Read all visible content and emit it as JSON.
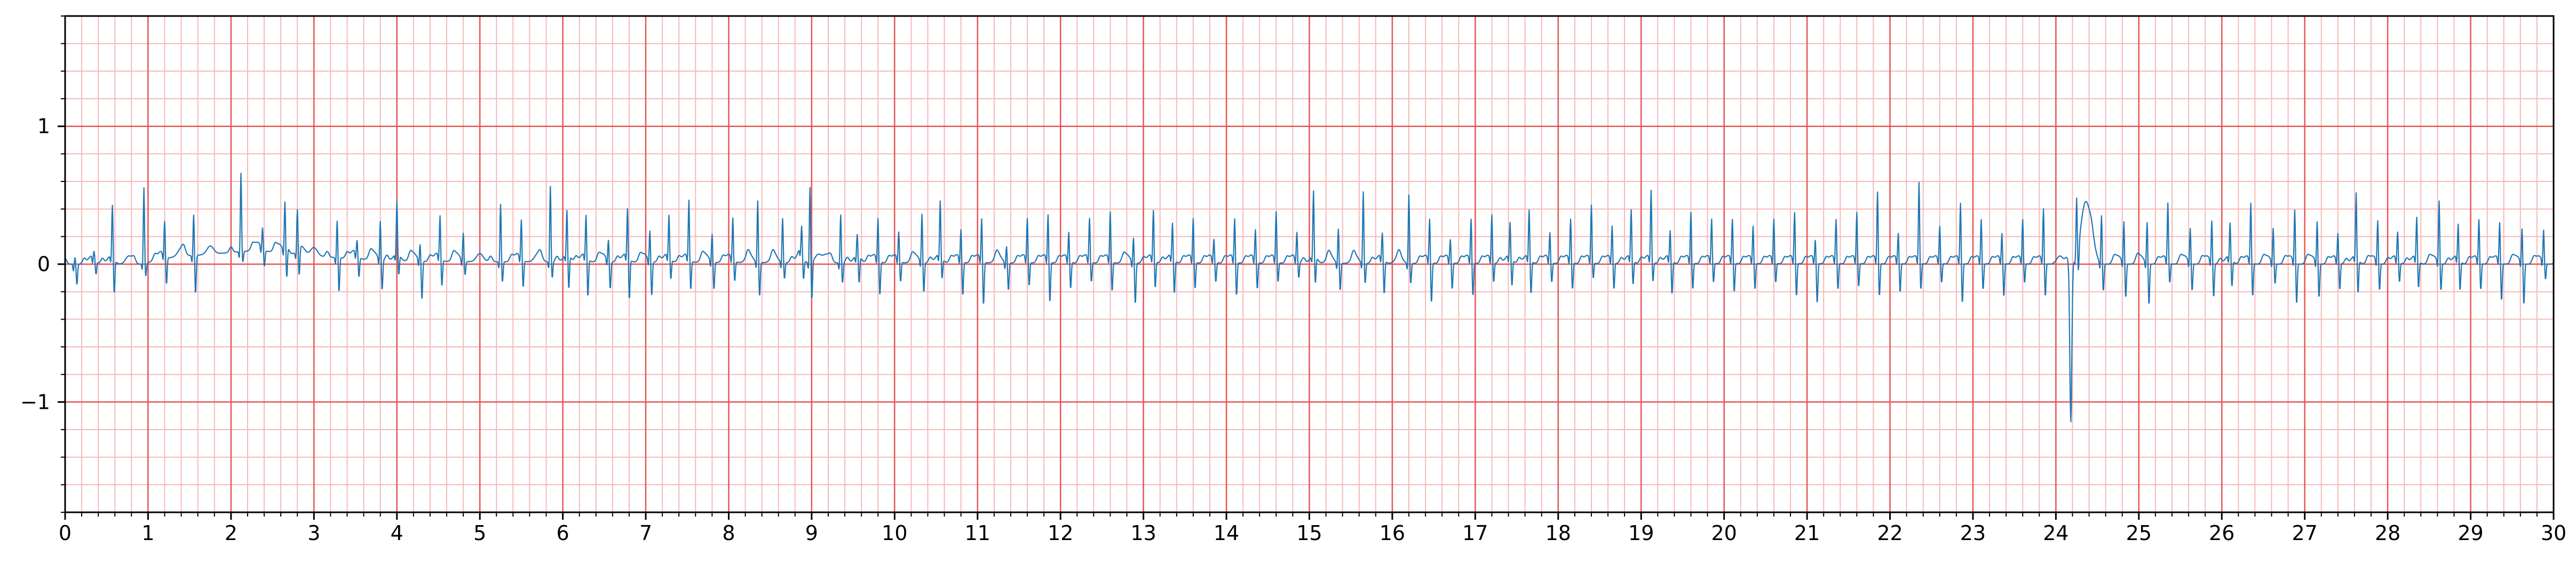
{
  "chart_data": {
    "type": "line",
    "title": "",
    "xlabel": "",
    "ylabel": "",
    "xlim": [
      0,
      30
    ],
    "ylim": [
      -1.8,
      1.8
    ],
    "x_ticks": [
      0,
      1,
      2,
      3,
      4,
      5,
      6,
      7,
      8,
      9,
      10,
      11,
      12,
      13,
      14,
      15,
      16,
      17,
      18,
      19,
      20,
      21,
      22,
      23,
      24,
      25,
      26,
      27,
      28,
      29,
      30
    ],
    "x_tick_labels": [
      "0",
      "1",
      "2",
      "3",
      "4",
      "5",
      "6",
      "7",
      "8",
      "9",
      "10",
      "11",
      "12",
      "13",
      "14",
      "15",
      "16",
      "17",
      "18",
      "19",
      "20",
      "21",
      "22",
      "23",
      "24",
      "25",
      "26",
      "27",
      "28",
      "29",
      "30"
    ],
    "y_ticks": [
      -1,
      0,
      1
    ],
    "y_tick_labels": [
      "−1",
      "0",
      "1"
    ],
    "grid": {
      "major_x_step": 1,
      "minor_x_step": 0.2,
      "major_y_step": 1,
      "minor_y_step": 0.2,
      "major_color": "#e85454",
      "minor_color": "#f7b8b8"
    },
    "line_color": "#1f77b4",
    "legend": "none",
    "series": [
      {
        "beat_times": [
          0.12,
          0.35,
          0.57,
          0.95,
          1.2,
          1.55,
          2.12,
          2.38,
          2.65,
          2.8,
          3.28,
          3.52,
          3.8,
          4.0,
          4.28,
          4.52,
          4.8,
          5.25,
          5.5,
          5.85,
          6.05,
          6.28,
          6.55,
          6.78,
          7.05,
          7.28,
          7.52,
          7.8,
          8.05,
          8.35,
          8.65,
          8.88,
          8.98,
          9.35,
          9.55,
          9.8,
          10.05,
          10.33,
          10.55,
          10.8,
          11.05,
          11.35,
          11.6,
          11.85,
          12.1,
          12.35,
          12.6,
          12.88,
          13.12,
          13.35,
          13.6,
          13.85,
          14.1,
          14.35,
          14.6,
          14.85,
          15.05,
          15.35,
          15.65,
          15.88,
          16.2,
          16.45,
          16.7,
          16.95,
          17.2,
          17.42,
          17.65,
          17.9,
          18.15,
          18.4,
          18.65,
          18.88,
          19.12,
          19.35,
          19.6,
          19.85,
          20.1,
          20.35,
          20.6,
          20.85,
          21.1,
          21.35,
          21.6,
          21.85,
          22.1,
          22.35,
          22.6,
          22.85,
          23.1,
          23.35,
          23.6,
          23.85,
          24.25,
          24.55,
          24.82,
          25.1,
          25.35,
          25.62,
          25.88,
          26.1,
          26.35,
          26.62,
          26.88,
          27.15,
          27.4,
          27.62,
          27.88,
          28.12,
          28.35,
          28.62,
          28.85,
          29.1,
          29.35,
          29.62,
          29.88
        ],
        "r_amplitude": [
          0.05,
          0.05,
          0.38,
          0.55,
          0.25,
          0.3,
          0.57,
          0.15,
          0.35,
          0.3,
          0.27,
          0.1,
          0.28,
          0.38,
          0.12,
          0.3,
          0.2,
          0.42,
          0.28,
          0.55,
          0.32,
          0.3,
          0.15,
          0.35,
          0.22,
          0.3,
          0.42,
          0.2,
          0.3,
          0.45,
          0.32,
          0.2,
          0.55,
          0.35,
          0.15,
          0.3,
          0.2,
          0.35,
          0.4,
          0.22,
          0.3,
          0.12,
          0.3,
          0.33,
          0.2,
          0.3,
          0.35,
          0.18,
          0.35,
          0.25,
          0.3,
          0.15,
          0.3,
          0.22,
          0.35,
          0.2,
          0.47,
          0.25,
          0.52,
          0.18,
          0.5,
          0.3,
          0.15,
          0.3,
          0.33,
          0.25,
          0.35,
          0.2,
          0.3,
          0.4,
          0.25,
          0.35,
          0.5,
          0.2,
          0.35,
          0.3,
          0.3,
          0.25,
          0.3,
          0.35,
          0.15,
          0.3,
          0.35,
          0.5,
          0.2,
          0.57,
          0.25,
          0.42,
          0.3,
          0.2,
          0.3,
          0.38,
          0.4,
          0.35,
          0.3,
          0.3,
          0.42,
          0.25,
          0.3,
          0.25,
          0.42,
          0.25,
          0.38,
          0.3,
          0.2,
          0.47,
          0.3,
          0.2,
          0.3,
          0.45,
          0.25,
          0.3,
          0.28,
          0.25,
          0.23
        ],
        "s_depth": [
          -0.15,
          -0.1,
          -0.25,
          -0.1,
          -0.2,
          -0.28,
          -0.08,
          -0.12,
          -0.22,
          -0.2,
          -0.25,
          -0.15,
          -0.22,
          -0.15,
          -0.28,
          -0.2,
          -0.1,
          -0.15,
          -0.2,
          -0.12,
          -0.25,
          -0.28,
          -0.2,
          -0.3,
          -0.25,
          -0.15,
          -0.22,
          -0.2,
          -0.15,
          -0.25,
          -0.12,
          -0.15,
          -0.28,
          -0.15,
          -0.2,
          -0.25,
          -0.15,
          -0.22,
          -0.15,
          -0.25,
          -0.32,
          -0.2,
          -0.18,
          -0.3,
          -0.2,
          -0.15,
          -0.22,
          -0.3,
          -0.2,
          -0.25,
          -0.2,
          -0.15,
          -0.25,
          -0.2,
          -0.15,
          -0.12,
          -0.2,
          -0.2,
          -0.15,
          -0.25,
          -0.15,
          -0.3,
          -0.2,
          -0.25,
          -0.15,
          -0.2,
          -0.25,
          -0.15,
          -0.2,
          -0.12,
          -0.2,
          -0.18,
          -0.15,
          -0.25,
          -0.2,
          -0.15,
          -0.22,
          -0.2,
          -0.15,
          -0.25,
          -0.3,
          -0.2,
          -0.18,
          -0.25,
          -0.22,
          -0.2,
          -0.15,
          -0.3,
          -0.2,
          -0.25,
          -0.15,
          -0.25,
          -0.2,
          -0.2,
          -0.25,
          -0.3,
          -0.15,
          -0.2,
          -0.25,
          -0.2,
          -0.25,
          -0.15,
          -0.3,
          -0.25,
          -0.2,
          -0.25,
          -0.2,
          -0.15,
          -0.2,
          -0.2,
          -0.22,
          -0.2,
          -0.28,
          -0.3,
          -0.12
        ],
        "baseline_drift": [
          [
            0,
            0.0
          ],
          [
            0.9,
            0.0
          ],
          [
            1.3,
            0.05
          ],
          [
            1.9,
            0.08
          ],
          [
            2.3,
            0.1
          ],
          [
            3.2,
            0.05
          ],
          [
            4.0,
            0.02
          ],
          [
            9.0,
            0.01
          ],
          [
            24.0,
            0.0
          ],
          [
            30,
            0.0
          ]
        ],
        "ectopic_event": {
          "t": 24.18,
          "min": -1.15,
          "t_wave_peak": 0.45
        }
      }
    ]
  }
}
